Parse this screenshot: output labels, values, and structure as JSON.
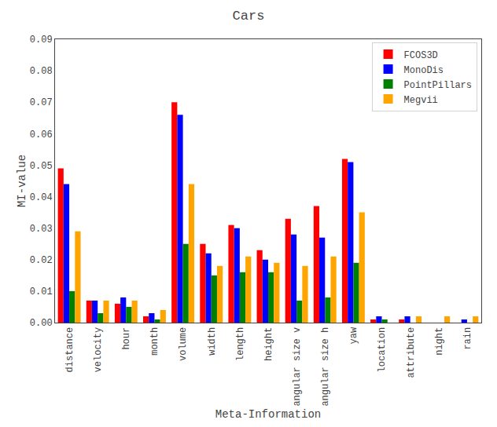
{
  "chart_data": {
    "type": "bar",
    "title": "Cars",
    "xlabel": "Meta-Information",
    "ylabel": "MI-value",
    "categories": [
      "distance",
      "velocity",
      "hour",
      "month",
      "volume",
      "width",
      "length",
      "height",
      "angular size v",
      "angular size h",
      "yaw",
      "location",
      "attribute",
      "night",
      "rain"
    ],
    "series": [
      {
        "name": "FCOS3D",
        "color": "#ff0000",
        "values": [
          0.049,
          0.007,
          0.006,
          0.002,
          0.07,
          0.025,
          0.031,
          0.023,
          0.033,
          0.037,
          0.052,
          0.001,
          0.001,
          0.0,
          0.0
        ]
      },
      {
        "name": "MonoDis",
        "color": "#0000ff",
        "values": [
          0.044,
          0.007,
          0.008,
          0.003,
          0.066,
          0.022,
          0.03,
          0.02,
          0.028,
          0.027,
          0.051,
          0.002,
          0.002,
          0.0,
          0.001
        ]
      },
      {
        "name": "PointPillars",
        "color": "#008000",
        "values": [
          0.01,
          0.003,
          0.005,
          0.001,
          0.025,
          0.015,
          0.016,
          0.016,
          0.007,
          0.008,
          0.019,
          0.001,
          0.0,
          0.0,
          0.0
        ]
      },
      {
        "name": "Megvii",
        "color": "#ffa500",
        "values": [
          0.029,
          0.007,
          0.007,
          0.004,
          0.044,
          0.018,
          0.021,
          0.019,
          0.018,
          0.021,
          0.035,
          0.0,
          0.002,
          0.002,
          0.002
        ]
      }
    ],
    "ylim": [
      0,
      0.09
    ],
    "yticks": [
      {
        "value": 0,
        "label": "0.00"
      },
      0.01,
      0.02,
      0.03,
      0.04,
      0.05,
      0.06,
      0.07,
      0.08,
      0.09
    ],
    "grid": false,
    "legend": "upper right"
  }
}
